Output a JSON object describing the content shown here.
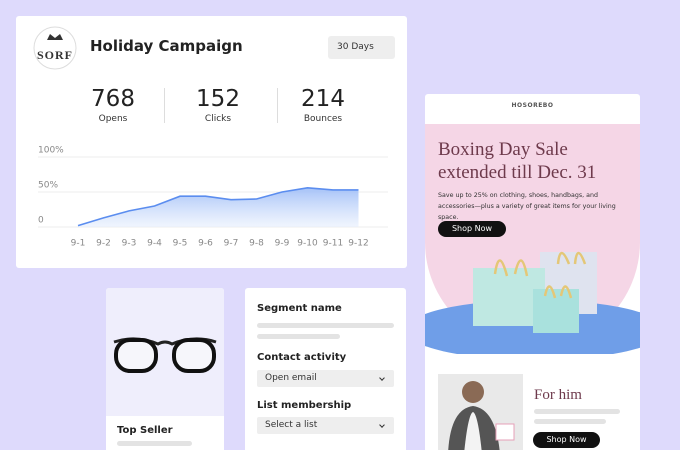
{
  "campaign": {
    "logo": "SORF",
    "title": "Holiday Campaign",
    "range": "30 Days",
    "stats": [
      {
        "value": 768,
        "label": "Opens"
      },
      {
        "value": 152,
        "label": "Clicks"
      },
      {
        "value": 214,
        "label": "Bounces"
      }
    ]
  },
  "chart_data": {
    "type": "area",
    "categories": [
      "9-1",
      "9-2",
      "9-3",
      "9-4",
      "9-5",
      "9-6",
      "9-7",
      "9-8",
      "9-9",
      "9-10",
      "9-11",
      "9-12"
    ],
    "values": [
      2,
      13,
      23,
      30,
      44,
      44,
      39,
      40,
      50,
      56,
      53,
      53
    ],
    "color": "#5b8def",
    "ylim": [
      0,
      100
    ],
    "yticks": [
      {
        "value": 100,
        "label": "100%"
      },
      {
        "value": 50,
        "label": "50%"
      },
      0
    ],
    "grid": true
  },
  "product": {
    "badge": "Top Seller"
  },
  "segment": {
    "fields": [
      {
        "label": "Segment name"
      },
      {
        "label": "Contact activity",
        "value": "Open email"
      },
      {
        "label": "List membership",
        "value": "Select a list"
      }
    ]
  },
  "email": {
    "brand": "HOSOREBO",
    "headline": [
      "Boxing Day Sale",
      "extended till Dec. 31"
    ],
    "body": "Save up to 25% on clothing, shoes, handbags, and accessories—plus a variety of great items for your living space.",
    "cta": "Shop Now",
    "feature": {
      "title": "For him",
      "cta": "Shop Now"
    }
  }
}
